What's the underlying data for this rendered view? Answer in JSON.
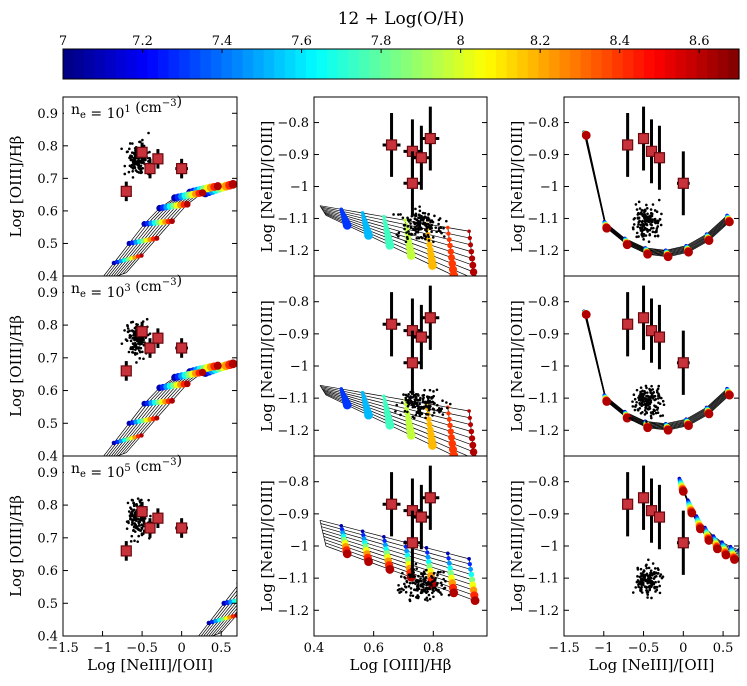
{
  "figure": {
    "colorbar": {
      "title": "12 + Log(O/H)",
      "min": 7.0,
      "max": 8.7,
      "ticks": [
        7,
        7.2,
        7.4,
        7.6,
        7.8,
        8,
        8.2,
        8.4,
        8.6
      ],
      "tick_labels": [
        "7",
        "7.2",
        "7.4",
        "7.6",
        "7.8",
        "8",
        "8.2",
        "8.4",
        "8.6"
      ],
      "colormap": "jet"
    }
  },
  "chart_data": [
    {
      "type": "scatter",
      "panel": "row1-col1",
      "annotation": "n_e = 10^1 (cm^-3)",
      "annotation_base": "n",
      "annotation_sub": "e",
      "annotation_mid": " = 10",
      "annotation_exp": "1",
      "annotation_unit": " (cm",
      "annotation_unit_exp": "−3",
      "annotation_close": ")",
      "xlabel": "",
      "ylabel": "Log [OIII]/Hβ",
      "xlim": [
        -1.5,
        0.7
      ],
      "ylim": [
        0.4,
        0.95
      ],
      "xticks": [],
      "xtick_labels": [],
      "yticks": [
        0.4,
        0.5,
        0.6,
        0.7,
        0.8,
        0.9
      ],
      "ytick_labels": [
        "0.4",
        "0.5",
        "0.6",
        "0.7",
        "0.8",
        "0.9"
      ],
      "grid": false,
      "legend": "none",
      "points": {
        "x": [
          -0.7,
          -0.5,
          -0.4,
          -0.3,
          0.0
        ],
        "y": [
          0.66,
          0.78,
          0.73,
          0.76,
          0.73
        ],
        "xerr": [
          0.06,
          0.06,
          0.06,
          0.06,
          0.08
        ],
        "yerr": [
          0.03,
          0.03,
          0.03,
          0.03,
          0.03
        ]
      }
    },
    {
      "type": "scatter",
      "panel": "row1-col2",
      "annotation": "",
      "xlabel": "",
      "ylabel": "Log [NeIII]/[OIII]",
      "xlim": [
        0.4,
        0.98
      ],
      "ylim": [
        -1.28,
        -0.72
      ],
      "xticks": [],
      "xtick_labels": [],
      "yticks": [
        -1.2,
        -1.1,
        -1.0,
        -0.9,
        -0.8
      ],
      "ytick_labels": [
        "−1.2",
        "−1.1",
        "−1",
        "−0.9",
        "−0.8"
      ],
      "grid": false,
      "legend": "none",
      "points": {
        "x": [
          0.66,
          0.73,
          0.76,
          0.79,
          0.73
        ],
        "y": [
          -0.87,
          -0.89,
          -0.91,
          -0.85,
          -0.99
        ],
        "xerr": [
          0.03,
          0.03,
          0.03,
          0.03,
          0.03
        ],
        "yerr": [
          0.1,
          0.1,
          0.1,
          0.1,
          0.1
        ]
      }
    },
    {
      "type": "scatter",
      "panel": "row1-col3",
      "annotation": "",
      "xlabel": "",
      "ylabel": "Log [NeIII]/[OIII]",
      "xlim": [
        -1.5,
        0.7
      ],
      "ylim": [
        -1.28,
        -0.72
      ],
      "xticks": [],
      "xtick_labels": [],
      "yticks": [
        -1.2,
        -1.1,
        -1.0,
        -0.9,
        -0.8
      ],
      "ytick_labels": [
        "−1.2",
        "−1.1",
        "−1",
        "−0.9",
        "−0.8"
      ],
      "grid": false,
      "legend": "none",
      "points": {
        "x": [
          -0.7,
          -0.5,
          -0.4,
          -0.3,
          0.0
        ],
        "y": [
          -0.87,
          -0.85,
          -0.89,
          -0.91,
          -0.99
        ],
        "xerr": [
          0.06,
          0.06,
          0.06,
          0.06,
          0.08
        ],
        "yerr": [
          0.1,
          0.1,
          0.1,
          0.1,
          0.1
        ]
      }
    },
    {
      "type": "scatter",
      "panel": "row2-col1",
      "annotation": "n_e = 10^3 (cm^-3)",
      "annotation_base": "n",
      "annotation_sub": "e",
      "annotation_mid": " = 10",
      "annotation_exp": "3",
      "annotation_unit": " (cm",
      "annotation_unit_exp": "−3",
      "annotation_close": ")",
      "xlabel": "",
      "ylabel": "Log [OIII]/Hβ",
      "xlim": [
        -1.5,
        0.7
      ],
      "ylim": [
        0.4,
        0.95
      ],
      "xticks": [],
      "xtick_labels": [],
      "yticks": [
        0.4,
        0.5,
        0.6,
        0.7,
        0.8,
        0.9
      ],
      "ytick_labels": [
        "0.4",
        "0.5",
        "0.6",
        "0.7",
        "0.8",
        "0.9"
      ],
      "grid": false,
      "legend": "none",
      "points": {
        "x": [
          -0.7,
          -0.5,
          -0.4,
          -0.3,
          0.0
        ],
        "y": [
          0.66,
          0.78,
          0.73,
          0.76,
          0.73
        ],
        "xerr": [
          0.06,
          0.06,
          0.06,
          0.06,
          0.08
        ],
        "yerr": [
          0.03,
          0.03,
          0.03,
          0.03,
          0.03
        ]
      }
    },
    {
      "type": "scatter",
      "panel": "row2-col2",
      "annotation": "",
      "xlabel": "",
      "ylabel": "Log [NeIII]/[OIII]",
      "xlim": [
        0.4,
        0.98
      ],
      "ylim": [
        -1.28,
        -0.72
      ],
      "xticks": [],
      "xtick_labels": [],
      "yticks": [
        -1.2,
        -1.1,
        -1.0,
        -0.9,
        -0.8
      ],
      "ytick_labels": [
        "−1.2",
        "−1.1",
        "−1",
        "−0.9",
        "−0.8"
      ],
      "grid": false,
      "legend": "none",
      "points": {
        "x": [
          0.66,
          0.73,
          0.76,
          0.79,
          0.73
        ],
        "y": [
          -0.87,
          -0.89,
          -0.91,
          -0.85,
          -0.99
        ],
        "xerr": [
          0.03,
          0.03,
          0.03,
          0.03,
          0.03
        ],
        "yerr": [
          0.1,
          0.1,
          0.1,
          0.1,
          0.1
        ]
      }
    },
    {
      "type": "scatter",
      "panel": "row2-col3",
      "annotation": "",
      "xlabel": "",
      "ylabel": "Log [NeIII]/[OIII]",
      "xlim": [
        -1.5,
        0.7
      ],
      "ylim": [
        -1.28,
        -0.72
      ],
      "xticks": [],
      "xtick_labels": [],
      "yticks": [
        -1.2,
        -1.1,
        -1.0,
        -0.9,
        -0.8
      ],
      "ytick_labels": [
        "−1.2",
        "−1.1",
        "−1",
        "−0.9",
        "−0.8"
      ],
      "grid": false,
      "legend": "none",
      "points": {
        "x": [
          -0.7,
          -0.5,
          -0.4,
          -0.3,
          0.0
        ],
        "y": [
          -0.87,
          -0.85,
          -0.89,
          -0.91,
          -0.99
        ],
        "xerr": [
          0.06,
          0.06,
          0.06,
          0.06,
          0.08
        ],
        "yerr": [
          0.1,
          0.1,
          0.1,
          0.1,
          0.1
        ]
      }
    },
    {
      "type": "scatter",
      "panel": "row3-col1",
      "annotation": "n_e = 10^5 (cm^-3)",
      "annotation_base": "n",
      "annotation_sub": "e",
      "annotation_mid": " = 10",
      "annotation_exp": "5",
      "annotation_unit": " (cm",
      "annotation_unit_exp": "−3",
      "annotation_close": ")",
      "xlabel": "Log [NeIII]/[OII]",
      "ylabel": "Log [OIII]/Hβ",
      "xlim": [
        -1.5,
        0.7
      ],
      "ylim": [
        0.4,
        0.95
      ],
      "xticks": [
        -1.5,
        -1,
        -0.5,
        0,
        0.5
      ],
      "xtick_labels": [
        "−1.5",
        "−1",
        "−0.5",
        "0",
        "0.5"
      ],
      "yticks": [
        0.4,
        0.5,
        0.6,
        0.7,
        0.8,
        0.9
      ],
      "ytick_labels": [
        "0.4",
        "0.5",
        "0.6",
        "0.7",
        "0.8",
        "0.9"
      ],
      "grid": false,
      "legend": "none",
      "points": {
        "x": [
          -0.7,
          -0.5,
          -0.4,
          -0.3,
          0.0
        ],
        "y": [
          0.66,
          0.78,
          0.73,
          0.76,
          0.73
        ],
        "xerr": [
          0.06,
          0.06,
          0.06,
          0.06,
          0.08
        ],
        "yerr": [
          0.03,
          0.03,
          0.03,
          0.03,
          0.03
        ]
      }
    },
    {
      "type": "scatter",
      "panel": "row3-col2",
      "annotation": "",
      "xlabel": "Log [OIII]/Hβ",
      "ylabel": "Log [NeIII]/[OIII]",
      "xlim": [
        0.4,
        0.98
      ],
      "ylim": [
        -1.28,
        -0.72
      ],
      "xticks": [
        0.4,
        0.6,
        0.8
      ],
      "xtick_labels": [
        "0.4",
        "0.6",
        "0.8"
      ],
      "yticks": [
        -1.2,
        -1.1,
        -1.0,
        -0.9,
        -0.8
      ],
      "ytick_labels": [
        "−1.2",
        "−1.1",
        "−1",
        "−0.9",
        "−0.8"
      ],
      "grid": false,
      "legend": "none",
      "points": {
        "x": [
          0.66,
          0.73,
          0.76,
          0.79,
          0.73
        ],
        "y": [
          -0.87,
          -0.89,
          -0.91,
          -0.85,
          -0.99
        ],
        "xerr": [
          0.03,
          0.03,
          0.03,
          0.03,
          0.03
        ],
        "yerr": [
          0.1,
          0.1,
          0.1,
          0.1,
          0.1
        ]
      }
    },
    {
      "type": "scatter",
      "panel": "row3-col3",
      "annotation": "",
      "xlabel": "Log [NeIII]/[OII]",
      "ylabel": "Log [NeIII]/[OIII]",
      "xlim": [
        -1.5,
        0.7
      ],
      "ylim": [
        -1.28,
        -0.72
      ],
      "xticks": [
        -1.5,
        -1,
        -0.5,
        0,
        0.5
      ],
      "xtick_labels": [
        "−1.5",
        "−1",
        "−0.5",
        "0",
        "0.5"
      ],
      "yticks": [
        -1.2,
        -1.1,
        -1.0,
        -0.9,
        -0.8
      ],
      "ytick_labels": [
        "−1.2",
        "−1.1",
        "−1",
        "−0.9",
        "−0.8"
      ],
      "grid": false,
      "legend": "none",
      "points": {
        "x": [
          -0.7,
          -0.5,
          -0.4,
          -0.3,
          0.0
        ],
        "y": [
          -0.87,
          -0.85,
          -0.89,
          -0.91,
          -0.99
        ],
        "xerr": [
          0.06,
          0.06,
          0.06,
          0.06,
          0.08
        ],
        "yerr": [
          0.1,
          0.1,
          0.1,
          0.1,
          0.1
        ]
      }
    }
  ]
}
